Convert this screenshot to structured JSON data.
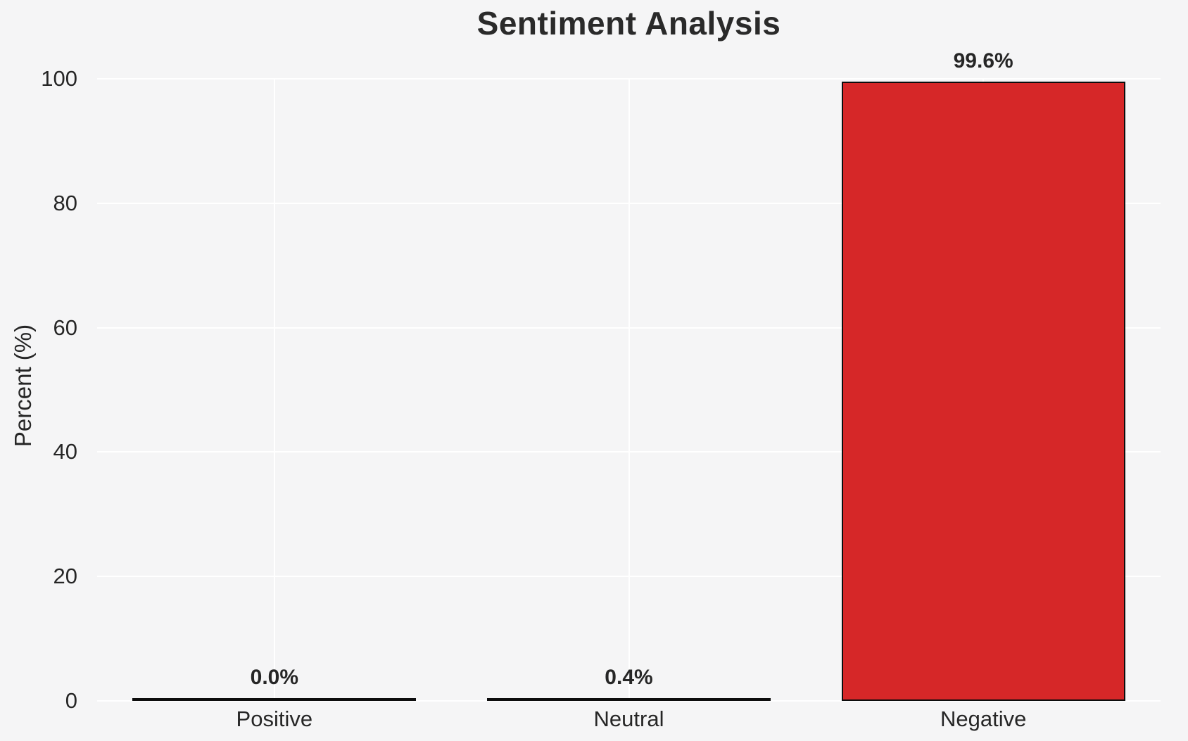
{
  "figure": {
    "background_color": "#f5f5f6",
    "grid_color": "#ffffff",
    "text_color": "#262626"
  },
  "chart_data": {
    "type": "bar",
    "title": "Sentiment Analysis",
    "xlabel": "",
    "ylabel": "Percent (%)",
    "categories": [
      "Positive",
      "Neutral",
      "Negative"
    ],
    "values": [
      0.0,
      0.4,
      99.6
    ],
    "value_labels": [
      "0.0%",
      "0.4%",
      "99.6%"
    ],
    "ylim": [
      0,
      100
    ],
    "yticks": [
      0,
      20,
      40,
      60,
      80,
      100
    ],
    "grid": "on",
    "legend": "none",
    "bar_width_fraction": 0.8,
    "bar_fill_color": "#d62728",
    "bar_edge_color": "#0d0d0d"
  }
}
